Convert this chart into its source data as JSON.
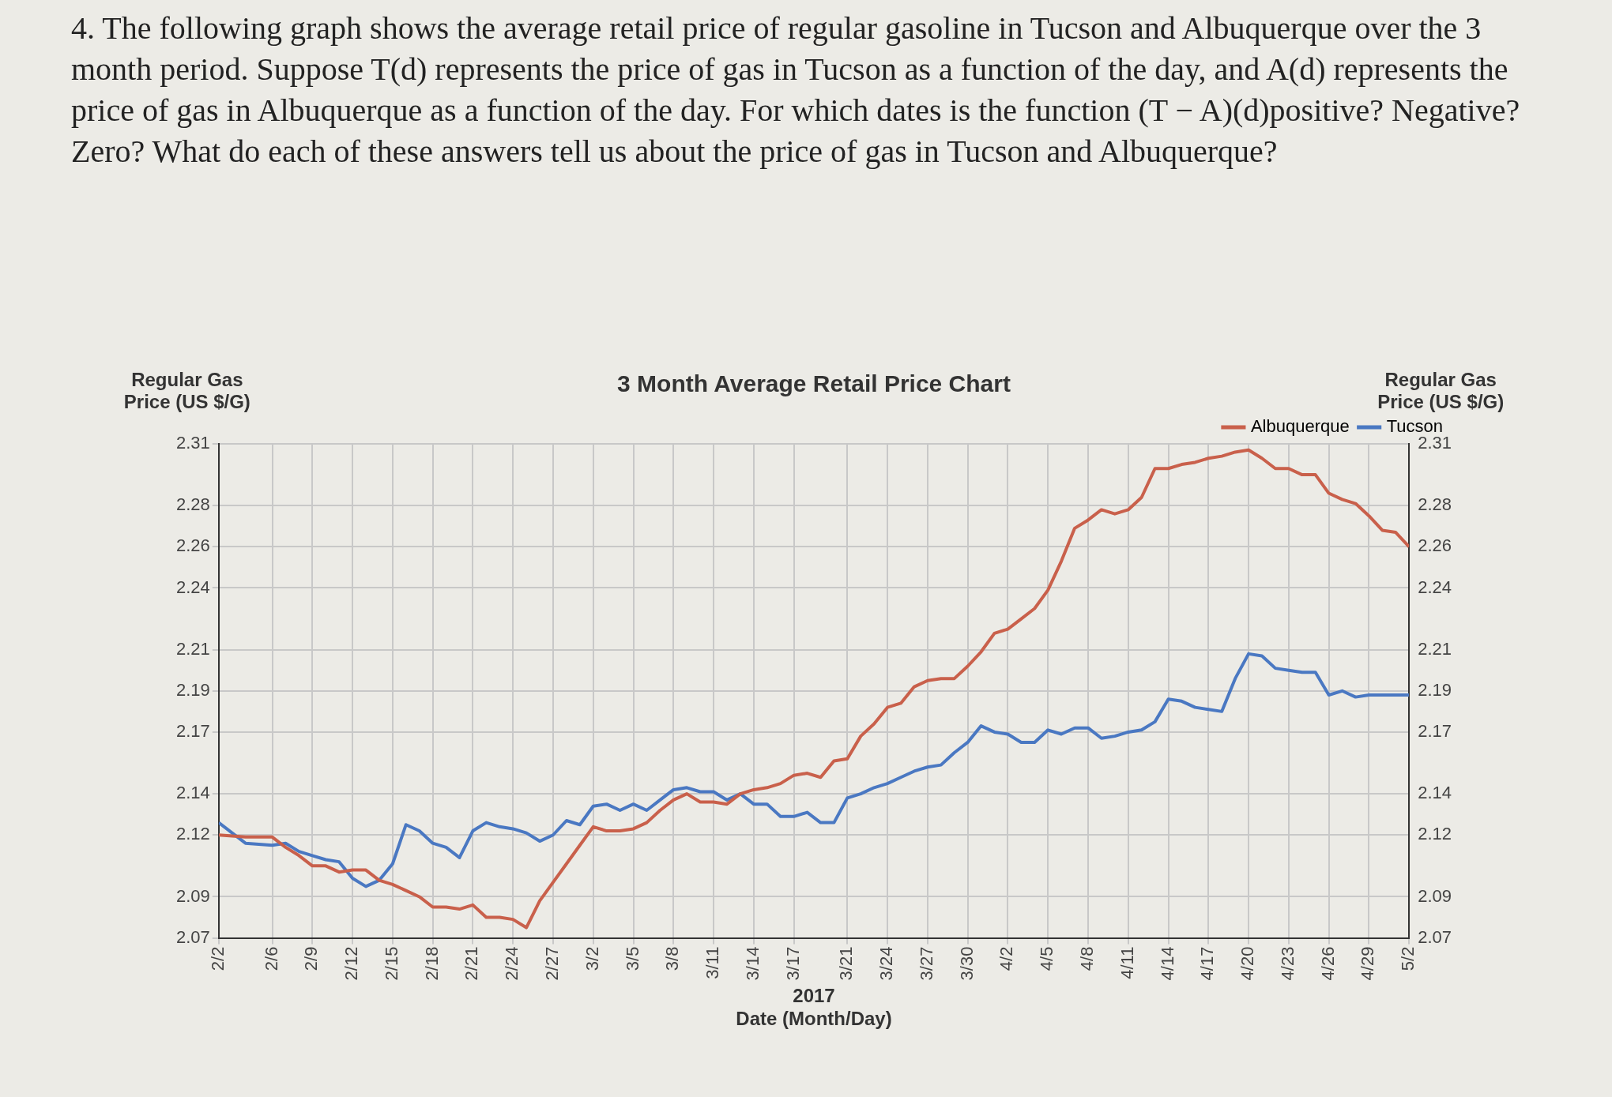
{
  "chart_data": {
    "type": "line",
    "title": "3 Month Average Retail Price Chart",
    "xlabel": "2017\nDate (Month/Day)",
    "ylabel": "Regular Gas Price (US $/G)",
    "y2label": "Regular Gas Price (US $/G)",
    "annotations": [
      "4. The following graph shows the average retail price of regular gasoline in Tucson and Albuquerque over the 3 month period. Suppose T(d) represents the price of gas in Tucson as a function of the day, and A(d) represents the price of gas in Albuquerque as a function of the day. For which dates is the function (T − A)(d)positive? Negative? Zero? What do each of these answers tell us about the price of gas in Tucson and Albuquerque?"
    ],
    "x": [
      "--02-02",
      "--02-04",
      "--02-06",
      "--02-07",
      "--02-08",
      "--02-09",
      "--02-10",
      "--02-11",
      "--02-12",
      "--02-13",
      "--02-14",
      "--02-15",
      "--02-16",
      "--02-17",
      "--02-18",
      "--02-19",
      "--02-20",
      "--02-21",
      "--02-22",
      "--02-23",
      "--02-24",
      "--02-25",
      "--02-26",
      "--02-27",
      "--02-28",
      "--03-01",
      "--03-02",
      "--03-03",
      "--03-04",
      "--03-05",
      "--03-06",
      "--03-07",
      "--03-08",
      "--03-09",
      "--03-10",
      "--03-11",
      "--03-12",
      "--03-13",
      "--03-14",
      "--03-15",
      "--03-16",
      "--03-17",
      "--03-18",
      "--03-19",
      "--03-20",
      "--03-21",
      "--03-22",
      "--03-23",
      "--03-24",
      "--03-25",
      "--03-26",
      "--03-27",
      "--03-28",
      "--03-29",
      "--03-30",
      "--03-31",
      "--04-01",
      "--04-02",
      "--04-03",
      "--04-04",
      "--04-05",
      "--04-06",
      "--04-07",
      "--04-08",
      "--04-09",
      "--04-10",
      "--04-11",
      "--04-12",
      "--04-13",
      "--04-14",
      "--04-15",
      "--04-16",
      "--04-17",
      "--04-18",
      "--04-19",
      "--04-20",
      "--04-21",
      "--04-22",
      "--04-23",
      "--04-24",
      "--04-25",
      "--04-26",
      "--04-27",
      "--04-28",
      "--04-29",
      "--04-30",
      "--05-01",
      "--05-02"
    ],
    "series": [
      {
        "name": "Albuquerque",
        "color": "#c9604b",
        "values": [
          2.12,
          2.119,
          2.119,
          2.114,
          2.11,
          2.105,
          2.105,
          2.102,
          2.103,
          2.103,
          2.098,
          2.096,
          2.093,
          2.09,
          2.085,
          2.085,
          2.084,
          2.086,
          2.08,
          2.08,
          2.079,
          2.075,
          2.088,
          2.097,
          2.106,
          2.115,
          2.124,
          2.122,
          2.122,
          2.123,
          2.126,
          2.132,
          2.137,
          2.14,
          2.136,
          2.136,
          2.135,
          2.14,
          2.142,
          2.143,
          2.145,
          2.149,
          2.15,
          2.148,
          2.156,
          2.157,
          2.168,
          2.174,
          2.182,
          2.184,
          2.192,
          2.195,
          2.196,
          2.196,
          2.202,
          2.209,
          2.218,
          2.22,
          2.225,
          2.23,
          2.239,
          2.253,
          2.269,
          2.273,
          2.278,
          2.276,
          2.278,
          2.284,
          2.298,
          2.298,
          2.3,
          2.301,
          2.303,
          2.304,
          2.306,
          2.307,
          2.303,
          2.298,
          2.298,
          2.295,
          2.295,
          2.286,
          2.283,
          2.281,
          2.275,
          2.268,
          2.267,
          2.26
        ]
      },
      {
        "name": "Tucson",
        "color": "#4a78c2",
        "values": [
          2.126,
          2.116,
          2.115,
          2.116,
          2.112,
          2.11,
          2.108,
          2.107,
          2.099,
          2.095,
          2.098,
          2.106,
          2.125,
          2.122,
          2.116,
          2.114,
          2.109,
          2.122,
          2.126,
          2.124,
          2.123,
          2.121,
          2.117,
          2.12,
          2.127,
          2.125,
          2.134,
          2.135,
          2.132,
          2.135,
          2.132,
          2.137,
          2.142,
          2.143,
          2.141,
          2.141,
          2.137,
          2.14,
          2.135,
          2.135,
          2.129,
          2.129,
          2.131,
          2.126,
          2.126,
          2.138,
          2.14,
          2.143,
          2.145,
          2.148,
          2.151,
          2.153,
          2.154,
          2.16,
          2.165,
          2.173,
          2.17,
          2.169,
          2.165,
          2.165,
          2.171,
          2.169,
          2.172,
          2.172,
          2.167,
          2.168,
          2.17,
          2.171,
          2.175,
          2.186,
          2.185,
          2.182,
          2.181,
          2.18,
          2.196,
          2.208,
          2.207,
          2.201,
          2.2,
          2.199,
          2.199,
          2.188,
          2.19,
          2.187,
          2.188,
          2.188,
          2.188,
          2.188
        ]
      }
    ],
    "xlim": [
      "--02-02",
      "--05-02"
    ],
    "xticks": [
      {
        "value": "--02-02",
        "label": "2/2"
      },
      {
        "value": "--02-06",
        "label": "2/6"
      },
      {
        "value": "--02-09",
        "label": "2/9"
      },
      {
        "value": "--02-12",
        "label": "2/12"
      },
      {
        "value": "--02-15",
        "label": "2/15"
      },
      {
        "value": "--02-18",
        "label": "2/18"
      },
      {
        "value": "--02-21",
        "label": "2/21"
      },
      {
        "value": "--02-24",
        "label": "2/24"
      },
      {
        "value": "--02-27",
        "label": "2/27"
      },
      {
        "value": "--03-02",
        "label": "3/2"
      },
      {
        "value": "--03-05",
        "label": "3/5"
      },
      {
        "value": "--03-08",
        "label": "3/8"
      },
      {
        "value": "--03-11",
        "label": "3/11"
      },
      {
        "value": "--03-14",
        "label": "3/14"
      },
      {
        "value": "--03-17",
        "label": "3/17"
      },
      {
        "value": "--03-21",
        "label": "3/21"
      },
      {
        "value": "--03-24",
        "label": "3/24"
      },
      {
        "value": "--03-27",
        "label": "3/27"
      },
      {
        "value": "--03-30",
        "label": "3/30"
      },
      {
        "value": "--04-02",
        "label": "4/2"
      },
      {
        "value": "--04-05",
        "label": "4/5"
      },
      {
        "value": "--04-08",
        "label": "4/8"
      },
      {
        "value": "--04-11",
        "label": "4/11"
      },
      {
        "value": "--04-14",
        "label": "4/14"
      },
      {
        "value": "--04-17",
        "label": "4/17"
      },
      {
        "value": "--04-20",
        "label": "4/20"
      },
      {
        "value": "--04-23",
        "label": "4/23"
      },
      {
        "value": "--04-26",
        "label": "4/26"
      },
      {
        "value": "--04-29",
        "label": "4/29"
      },
      {
        "value": "--05-02",
        "label": "5/2"
      }
    ],
    "ylim": [
      2.07,
      2.31
    ],
    "yticks": [
      2.07,
      2.09,
      2.12,
      2.14,
      2.17,
      2.19,
      2.21,
      2.24,
      2.26,
      2.28,
      2.31
    ],
    "y2lim": [
      2.07,
      2.31
    ],
    "y2ticks": [
      2.07,
      2.09,
      2.12,
      2.14,
      2.17,
      2.19,
      2.21,
      2.24,
      2.26,
      2.28,
      2.31
    ],
    "grid": true,
    "legend": "top right",
    "marker": "none",
    "line_style": "solid"
  }
}
